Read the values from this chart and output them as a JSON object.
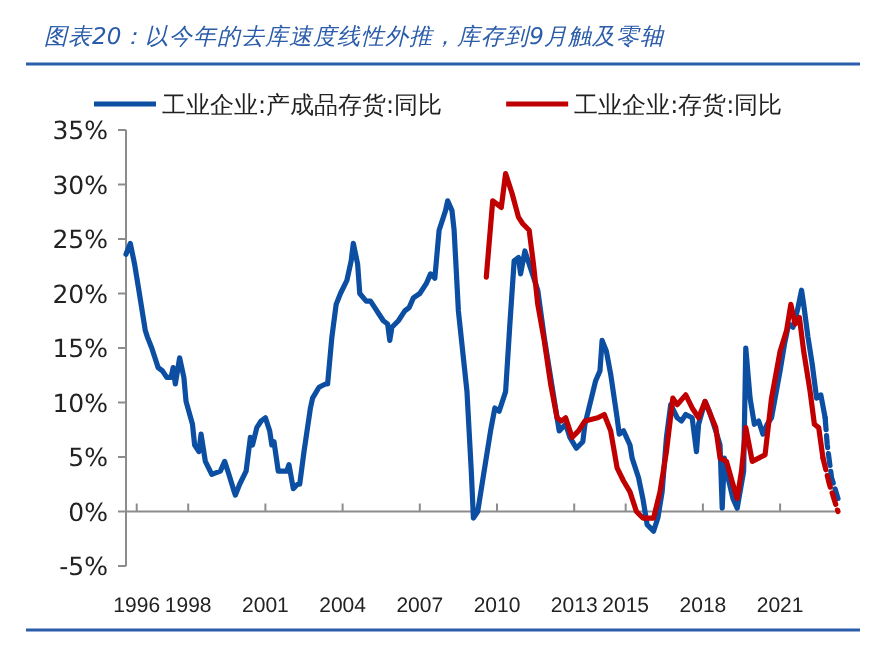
{
  "chart_data": {
    "type": "line",
    "title": "图表20：以今年的去库速度线性外推，库存到9月触及零轴",
    "legend": "top",
    "xlim": [
      "1995-08",
      "2023-04"
    ],
    "xticks": [
      "1996",
      "1998",
      "2001",
      "2004",
      "2007",
      "2010",
      "2013",
      "2015",
      "2018",
      "2021"
    ],
    "ylim": [
      -5,
      35
    ],
    "yticks": [
      {
        "value": -5,
        "label": "-5%"
      },
      {
        "value": 0,
        "label": "0%"
      },
      {
        "value": 5,
        "label": "5%"
      },
      {
        "value": 10,
        "label": "10%"
      },
      {
        "value": 15,
        "label": "15%"
      },
      {
        "value": 20,
        "label": "20%"
      },
      {
        "value": 25,
        "label": "25%"
      },
      {
        "value": 30,
        "label": "30%"
      },
      {
        "value": 35,
        "label": "35%"
      }
    ],
    "series": [
      {
        "name": "工业企业:产成品存货:同比",
        "color": "#0b4ea2",
        "line_style": "solid",
        "x": [
          "1995-08",
          "1995-10",
          "1995-12",
          "1996-02",
          "1996-05",
          "1996-06",
          "1996-08",
          "1996-11",
          "1997-01",
          "1997-03",
          "1997-05",
          "1997-06",
          "1997-07",
          "1997-09",
          "1997-11",
          "1997-12",
          "1998-03",
          "1998-04",
          "1998-06",
          "1998-07",
          "1998-09",
          "1998-12",
          "1999-04",
          "1999-06",
          "1999-08",
          "1999-10",
          "1999-11",
          "2000-01",
          "2000-04",
          "2000-06",
          "2000-07",
          "2000-09",
          "2000-11",
          "2001-01",
          "2001-03",
          "2001-04",
          "2001-05",
          "2001-07",
          "2001-11",
          "2001-12",
          "2002-02",
          "2002-04",
          "2002-05",
          "2002-07",
          "2002-10",
          "2002-11",
          "2003-02",
          "2003-05",
          "2003-06",
          "2003-08",
          "2003-10",
          "2003-12",
          "2004-03",
          "2004-05",
          "2004-06",
          "2004-08",
          "2004-09",
          "2004-12",
          "2005-02",
          "2005-04",
          "2005-06",
          "2005-08",
          "2005-10",
          "2005-11",
          "2005-12",
          "2006-03",
          "2006-06",
          "2006-08",
          "2006-10",
          "2007-01",
          "2007-04",
          "2007-06",
          "2007-08",
          "2007-10",
          "2008-01",
          "2008-02",
          "2008-04",
          "2008-05",
          "2008-07",
          "2008-11",
          "2009-01",
          "2009-02",
          "2009-04",
          "2009-07",
          "2009-10",
          "2009-12",
          "2010-02",
          "2010-05",
          "2010-07",
          "2010-09",
          "2010-11",
          "2010-12",
          "2011-02",
          "2011-08",
          "2011-11",
          "2012-02",
          "2012-05",
          "2012-06",
          "2012-09",
          "2012-11",
          "2013-02",
          "2013-05",
          "2013-06",
          "2013-09",
          "2013-11",
          "2014-01",
          "2014-02",
          "2014-04",
          "2014-06",
          "2014-09",
          "2014-10",
          "2014-12",
          "2015-03",
          "2015-04",
          "2015-07",
          "2015-09",
          "2015-11",
          "2016-02",
          "2016-04",
          "2016-06",
          "2016-08",
          "2016-10",
          "2017-01",
          "2017-03",
          "2017-05",
          "2017-08",
          "2017-10",
          "2017-11",
          "2018-02",
          "2018-04",
          "2018-07",
          "2018-09",
          "2018-10",
          "2018-11",
          "2018-12",
          "2019-03",
          "2019-05",
          "2019-08",
          "2019-09",
          "2019-11",
          "2020-01",
          "2020-03",
          "2020-05",
          "2020-07",
          "2020-09",
          "2021-01",
          "2021-03",
          "2021-05",
          "2021-07",
          "2021-09",
          "2021-11",
          "2021-12",
          "2022-02",
          "2022-04",
          "2022-06",
          "2022-08",
          "2022-10"
        ],
        "values": [
          23.6,
          24.6,
          22.7,
          20.3,
          16.6,
          16.0,
          15.0,
          13.2,
          12.9,
          12.3,
          12.3,
          13.2,
          11.7,
          14.1,
          12.3,
          10.1,
          8.0,
          6.1,
          5.5,
          7.1,
          4.6,
          3.4,
          3.7,
          4.6,
          3.4,
          2.1,
          1.5,
          2.5,
          3.7,
          6.8,
          6.1,
          7.7,
          8.3,
          8.6,
          7.4,
          6.1,
          6.4,
          3.7,
          3.7,
          4.3,
          2.1,
          2.5,
          2.5,
          5.5,
          9.5,
          10.4,
          11.4,
          11.7,
          11.7,
          16.0,
          19.0,
          20.0,
          21.2,
          23.0,
          24.6,
          22.7,
          20.0,
          19.3,
          19.3,
          18.7,
          18.1,
          17.5,
          17.2,
          15.7,
          16.9,
          17.5,
          18.4,
          18.7,
          19.6,
          20.0,
          20.9,
          21.8,
          21.4,
          25.8,
          27.6,
          28.5,
          27.6,
          25.8,
          18.4,
          11.0,
          3.7,
          -0.6,
          0,
          3.7,
          7.4,
          9.5,
          9.2,
          11.0,
          17.2,
          23.0,
          23.3,
          21.8,
          23.9,
          20.3,
          16.0,
          12.3,
          8.6,
          7.4,
          8.0,
          6.8,
          5.8,
          6.4,
          8.0,
          10.4,
          12.0,
          12.9,
          15.7,
          14.7,
          12.6,
          8.6,
          7.1,
          7.4,
          6.1,
          4.9,
          3.1,
          1.2,
          -1.2,
          -1.8,
          -0.6,
          1.8,
          6.8,
          9.8,
          8.6,
          8.3,
          8.9,
          8.6,
          5.5,
          8.0,
          10.1,
          9.2,
          7.4,
          6.1,
          0.3,
          4.9,
          3.7,
          1.2,
          0.3,
          3.7,
          15.0,
          10.4,
          8.0,
          8.3,
          7.1,
          8.0,
          8.6,
          12.9,
          15.3,
          17.2,
          16.9,
          18.4,
          20.3,
          19.0,
          16.0,
          13.5,
          10.4,
          10.7,
          8.6
        ]
      },
      {
        "color": "#0b4ea2",
        "line_style": "dashed",
        "x": [
          "2022-10",
          "2022-11",
          "2023-01",
          "2023-04"
        ],
        "values": [
          8.6,
          6.1,
          3.1,
          1.2
        ]
      },
      {
        "name": "工业企业:存货:同比",
        "color": "#c00000",
        "line_style": "solid",
        "x": [
          "2009-08",
          "2009-11",
          "2010-01",
          "2010-03",
          "2010-05",
          "2010-08",
          "2010-11",
          "2011-01",
          "2011-04",
          "2011-06",
          "2011-08",
          "2011-11",
          "2012-02",
          "2012-05",
          "2012-07",
          "2012-09",
          "2012-12",
          "2013-03",
          "2013-06",
          "2013-12",
          "2014-03",
          "2014-06",
          "2014-09",
          "2014-12",
          "2015-03",
          "2015-06",
          "2015-09",
          "2016-02",
          "2016-05",
          "2016-08",
          "2016-11",
          "2017-01",
          "2017-05",
          "2017-08",
          "2017-11",
          "2018-02",
          "2018-07",
          "2018-09",
          "2018-12",
          "2019-03",
          "2019-05",
          "2019-07",
          "2019-09",
          "2019-12",
          "2020-03",
          "2020-06",
          "2020-09",
          "2021-01",
          "2021-04",
          "2021-06",
          "2021-08",
          "2021-10",
          "2021-12",
          "2022-03",
          "2022-05",
          "2022-07",
          "2022-09"
        ],
        "values": [
          21.5,
          28.5,
          28.2,
          27.9,
          31.0,
          29.2,
          27.0,
          26.4,
          25.8,
          22.7,
          19.0,
          15.7,
          11.7,
          8.6,
          8.3,
          8.6,
          6.8,
          7.4,
          8.3,
          8.6,
          8.9,
          7.4,
          4.0,
          2.8,
          1.8,
          0,
          -0.6,
          -0.6,
          1.8,
          5.5,
          10.4,
          9.8,
          10.7,
          9.5,
          8.6,
          10.1,
          7.7,
          4.9,
          4.6,
          2.5,
          1.2,
          3.7,
          7.7,
          4.6,
          4.9,
          5.2,
          10.4,
          14.7,
          16.6,
          19.0,
          17.2,
          17.8,
          14.7,
          11.0,
          8.0,
          7.7,
          4.9
        ]
      },
      {
        "color": "#c00000",
        "line_style": "dashed",
        "x": [
          "2022-09",
          "2022-12",
          "2023-04"
        ],
        "values": [
          4.9,
          2.5,
          0
        ]
      }
    ]
  }
}
